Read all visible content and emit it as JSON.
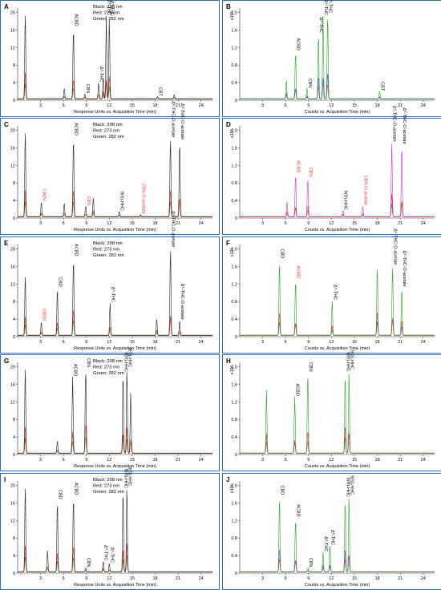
{
  "palette": {
    "frame": "#2f6fb5",
    "black": "#222222",
    "red": "#e03b3b",
    "green": "#2ca02c",
    "blue": "#3a5fcd",
    "purple": "#8a4bd0",
    "magenta": "#d633c4"
  },
  "common": {
    "uv_xlabel": "Response Units vs. Acquisition Time (min)",
    "ms_xlabel": "Counts vs. Acquisition Time (min)",
    "ms_yexp": "x10⁶",
    "wavelengths": [
      "Black: 208 nm",
      "Red: 273 nm",
      "Green: 282 nm"
    ],
    "uv_yticks": [
      "0",
      "4",
      "8",
      "12",
      "16",
      "20"
    ],
    "ms_yticks": [
      "0",
      "0.4",
      "0.8",
      "1.2",
      "1.6",
      "2.0"
    ],
    "xticks": [
      "3",
      "6",
      "9",
      "12",
      "15",
      "18",
      "21",
      "24"
    ]
  },
  "chart_data": [
    {
      "panel": "A",
      "type": "line",
      "xlim": [
        0,
        25.5
      ],
      "ylim": [
        0,
        21
      ],
      "show_wavelengths": true,
      "grid": false,
      "peaks": [
        {
          "t": 1.0,
          "y": 20,
          "label": ""
        },
        {
          "t": 6.1,
          "y": 2.5,
          "label": ""
        },
        {
          "t": 7.3,
          "y": 16.5,
          "label": "ACBD"
        },
        {
          "t": 8.8,
          "y": 1.2,
          "label": "CBN"
        },
        {
          "t": 10.6,
          "y": 3.8,
          "label": "Δ⁸-THC"
        },
        {
          "t": 11.2,
          "y": 5,
          "label": ""
        },
        {
          "t": 11.6,
          "y": 19,
          "label": "Δ⁹-THC"
        },
        {
          "t": 12.0,
          "y": 18.8,
          "label": "Δ⁸-THC"
        },
        {
          "t": 18.3,
          "y": 0.6,
          "label": "CBT"
        },
        {
          "t": 20.5,
          "y": 1.1,
          "label": ""
        }
      ]
    },
    {
      "panel": "B",
      "type": "line",
      "xlim": [
        0,
        25.5
      ],
      "ylim": [
        0,
        2.1
      ],
      "show_wavelengths": false,
      "grid": false,
      "peaks": [
        {
          "t": 6.1,
          "y": 0.45,
          "label": ""
        },
        {
          "t": 7.3,
          "y": 1.1,
          "label": "ACBD"
        },
        {
          "t": 8.8,
          "y": 0.25,
          "label": "CBN"
        },
        {
          "t": 10.3,
          "y": 1.5,
          "label": "Δ⁸-THC"
        },
        {
          "t": 10.9,
          "y": 1.9,
          "label": "Δ⁹-THC"
        },
        {
          "t": 11.5,
          "y": 1.95,
          "label": "Δ⁸-THC"
        },
        {
          "t": 18.3,
          "y": 0.18,
          "label": "CBT"
        }
      ]
    },
    {
      "panel": "C",
      "type": "line",
      "xlim": [
        0,
        25.5
      ],
      "ylim": [
        0,
        21
      ],
      "show_wavelengths": true,
      "grid": false,
      "peaks": [
        {
          "t": 1.0,
          "y": 20,
          "label": ""
        },
        {
          "t": 3.1,
          "y": 3.5,
          "label": "CBDV"
        },
        {
          "t": 6.1,
          "y": 3.2,
          "label": ""
        },
        {
          "t": 7.3,
          "y": 18.5,
          "label": "ACBD"
        },
        {
          "t": 8.9,
          "y": 2.5,
          "label": "CBN"
        },
        {
          "t": 9.9,
          "y": 4.5,
          "label": ""
        },
        {
          "t": 13.3,
          "y": 1.3,
          "label": "9(S)-HHC"
        },
        {
          "t": 16.1,
          "y": 0.6,
          "label": "CBN-O-acetate"
        },
        {
          "t": 20.0,
          "y": 18,
          "label": "Δ⁹-THC-O-acetate"
        },
        {
          "t": 21.2,
          "y": 17.5,
          "label": "Δ⁸-THC-O-acetate"
        }
      ]
    },
    {
      "panel": "D",
      "type": "line",
      "xlim": [
        0,
        25.5
      ],
      "ylim": [
        0,
        2.1
      ],
      "show_wavelengths": false,
      "grid": false,
      "peaks": [
        {
          "t": 6.2,
          "y": 0.35,
          "label": ""
        },
        {
          "t": 7.3,
          "y": 1.0,
          "label": "ACBD"
        },
        {
          "t": 8.9,
          "y": 0.9,
          "label": "CBN"
        },
        {
          "t": 13.5,
          "y": 0.15,
          "label": "9(S)-HHC"
        },
        {
          "t": 16.1,
          "y": 0.25,
          "label": "CBN-O-acetate"
        },
        {
          "t": 19.9,
          "y": 1.7,
          "label": "Δ⁹-THC-O-acetate"
        },
        {
          "t": 21.2,
          "y": 1.65,
          "label": "Δ⁸-THC-O-acetate"
        }
      ]
    },
    {
      "panel": "E",
      "type": "line",
      "xlim": [
        0,
        25.5
      ],
      "ylim": [
        0,
        21
      ],
      "show_wavelengths": true,
      "grid": false,
      "peaks": [
        {
          "t": 1.0,
          "y": 14,
          "label": ""
        },
        {
          "t": 3.1,
          "y": 3.2,
          "label": "CBDV"
        },
        {
          "t": 5.2,
          "y": 11,
          "label": "CBD"
        },
        {
          "t": 7.3,
          "y": 18,
          "label": "ACBD"
        },
        {
          "t": 12.1,
          "y": 7.5,
          "label": "Δ⁹-THC"
        },
        {
          "t": 18.2,
          "y": 4,
          "label": ""
        },
        {
          "t": 20.0,
          "y": 20,
          "label": "Δ⁹-THC-O-acetate"
        },
        {
          "t": 21.2,
          "y": 3.5,
          "label": "Δ⁸-THC-O-acetate"
        }
      ]
    },
    {
      "panel": "F",
      "type": "line",
      "xlim": [
        0,
        25.5
      ],
      "ylim": [
        0,
        2.1
      ],
      "show_wavelengths": false,
      "grid": false,
      "peaks": [
        {
          "t": 5.2,
          "y": 1.75,
          "label": "CBD"
        },
        {
          "t": 7.3,
          "y": 1.3,
          "label": "ACBD"
        },
        {
          "t": 12.1,
          "y": 0.8,
          "label": "Δ⁹-THC"
        },
        {
          "t": 18.0,
          "y": 1.6,
          "label": ""
        },
        {
          "t": 20.0,
          "y": 1.6,
          "label": "Δ⁹-THC-O-acetate"
        },
        {
          "t": 21.2,
          "y": 1.1,
          "label": "Δ⁸-THC-O-acetate"
        }
      ]
    },
    {
      "panel": "G",
      "type": "line",
      "xlim": [
        0,
        25.5
      ],
      "ylim": [
        0,
        21
      ],
      "show_wavelengths": true,
      "grid": false,
      "peaks": [
        {
          "t": 1.0,
          "y": 20,
          "label": ""
        },
        {
          "t": 5.2,
          "y": 3,
          "label": ""
        },
        {
          "t": 7.2,
          "y": 17.5,
          "label": "ACBD"
        },
        {
          "t": 8.9,
          "y": 19.5,
          "label": "CBN"
        },
        {
          "t": 13.8,
          "y": 18.5,
          "label": "9(R)-HHC"
        },
        {
          "t": 14.3,
          "y": 19.5,
          "label": "9(S)-HHC"
        },
        {
          "t": 14.8,
          "y": 14,
          "label": ""
        }
      ]
    },
    {
      "panel": "H",
      "type": "line",
      "xlim": [
        0,
        25.5
      ],
      "ylim": [
        0,
        2.1
      ],
      "show_wavelengths": false,
      "grid": false,
      "peaks": [
        {
          "t": 3.5,
          "y": 1.45,
          "label": ""
        },
        {
          "t": 7.2,
          "y": 1.3,
          "label": "ACBD"
        },
        {
          "t": 8.9,
          "y": 1.85,
          "label": "CBN"
        },
        {
          "t": 13.8,
          "y": 1.85,
          "label": "9(R)-HHC"
        },
        {
          "t": 14.3,
          "y": 1.9,
          "label": "9(S)-HHC"
        }
      ]
    },
    {
      "panel": "I",
      "type": "line",
      "xlim": [
        0,
        25.5
      ],
      "ylim": [
        0,
        21
      ],
      "show_wavelengths": true,
      "grid": false,
      "peaks": [
        {
          "t": 1.0,
          "y": 20,
          "label": ""
        },
        {
          "t": 3.9,
          "y": 5,
          "label": ""
        },
        {
          "t": 5.2,
          "y": 16.5,
          "label": "CBD"
        },
        {
          "t": 7.3,
          "y": 17.5,
          "label": "ACBD"
        },
        {
          "t": 8.9,
          "y": 1,
          "label": "CBN"
        },
        {
          "t": 11.2,
          "y": 2.5,
          "label": "Δ⁸-THC"
        },
        {
          "t": 12.0,
          "y": 2,
          "label": "Δ⁹-THC"
        },
        {
          "t": 13.8,
          "y": 19,
          "label": "9(R)-HHC"
        },
        {
          "t": 14.3,
          "y": 19.5,
          "label": "9(S)-HHC"
        }
      ]
    },
    {
      "panel": "J",
      "type": "line",
      "xlim": [
        0,
        25.5
      ],
      "ylim": [
        0,
        2.1
      ],
      "show_wavelengths": false,
      "grid": false,
      "peaks": [
        {
          "t": 5.2,
          "y": 1.75,
          "label": "CBD"
        },
        {
          "t": 7.3,
          "y": 1.25,
          "label": "ACBD"
        },
        {
          "t": 8.9,
          "y": 0.1,
          "label": "CBN"
        },
        {
          "t": 10.9,
          "y": 0.45,
          "label": "Δ⁸-THC"
        },
        {
          "t": 11.8,
          "y": 0.6,
          "label": "Δ⁹-THC"
        },
        {
          "t": 13.8,
          "y": 1.7,
          "label": "9(R)-HHC"
        },
        {
          "t": 14.3,
          "y": 1.75,
          "label": "9(S)-HHC"
        }
      ]
    }
  ]
}
